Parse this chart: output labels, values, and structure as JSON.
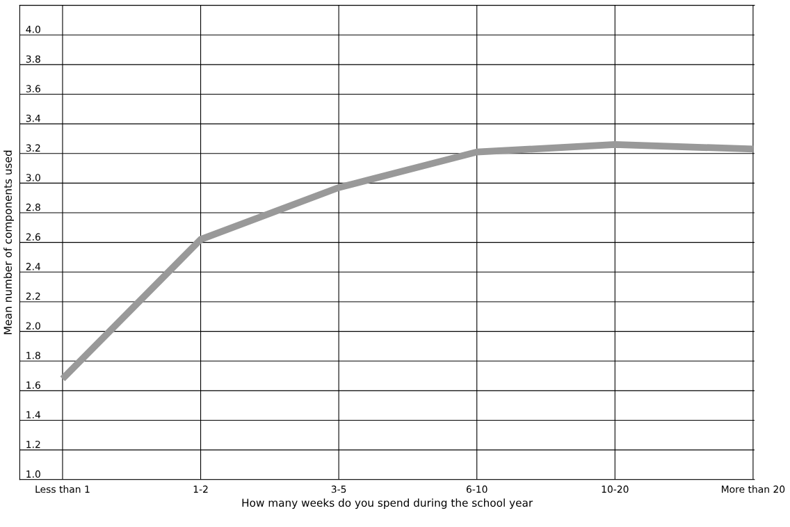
{
  "chart_data": {
    "type": "line",
    "xlabel": "How many weeks do you spend during the school year",
    "ylabel": "Mean number of components used",
    "categories": [
      "Less than 1",
      "1-2",
      "3-5",
      "6-10",
      "10-20",
      "More than 20"
    ],
    "series": [
      {
        "color": "#999999",
        "values": [
          1.68,
          2.62,
          2.97,
          3.21,
          3.26,
          3.23
        ]
      }
    ],
    "ylim": [
      1.0,
      4.2
    ],
    "yticks": [
      {
        "value": 1.0,
        "label": "1.0"
      },
      1.2,
      1.4,
      1.6,
      1.8,
      {
        "value": 2.0,
        "label": "2.0"
      },
      2.2,
      2.4,
      2.6,
      2.8,
      {
        "value": 3.0,
        "label": "3.0"
      },
      3.2,
      3.4,
      3.6,
      3.8,
      {
        "value": 4.0,
        "label": "4.0"
      }
    ],
    "grid": true,
    "marker": "none",
    "line_style": "solid"
  }
}
